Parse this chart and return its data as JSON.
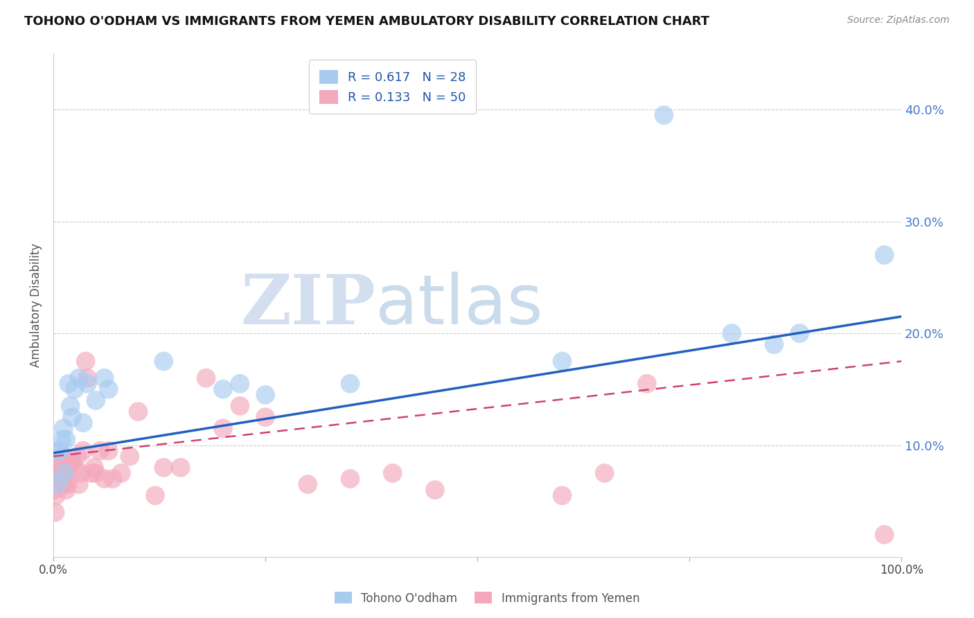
{
  "title": "TOHONO O'ODHAM VS IMMIGRANTS FROM YEMEN AMBULATORY DISABILITY CORRELATION CHART",
  "source": "Source: ZipAtlas.com",
  "ylabel": "Ambulatory Disability",
  "xlim": [
    0,
    1.0
  ],
  "ylim": [
    0,
    0.45
  ],
  "ytick_positions": [
    0.0,
    0.1,
    0.2,
    0.3,
    0.4
  ],
  "ytick_labels": [
    "",
    "10.0%",
    "20.0%",
    "30.0%",
    "40.0%"
  ],
  "xtick_positions": [
    0.0,
    0.25,
    0.5,
    0.75,
    1.0
  ],
  "xtick_labels": [
    "0.0%",
    "",
    "",
    "",
    "100.0%"
  ],
  "R_blue": 0.617,
  "N_blue": 28,
  "R_pink": 0.133,
  "N_pink": 50,
  "color_blue": "#A8CCF0",
  "color_pink": "#F4A8BC",
  "line_color_blue": "#2060C0",
  "line_color_pink": "#D04070",
  "watermark_zip": "ZIP",
  "watermark_atlas": "atlas",
  "blue_scatter_x": [
    0.003,
    0.005,
    0.007,
    0.01,
    0.012,
    0.013,
    0.015,
    0.018,
    0.02,
    0.022,
    0.025,
    0.03,
    0.035,
    0.04,
    0.05,
    0.06,
    0.065,
    0.13,
    0.2,
    0.22,
    0.25,
    0.35,
    0.6,
    0.72,
    0.8,
    0.85,
    0.88,
    0.98
  ],
  "blue_scatter_y": [
    0.095,
    0.065,
    0.095,
    0.105,
    0.115,
    0.075,
    0.105,
    0.155,
    0.135,
    0.125,
    0.15,
    0.16,
    0.12,
    0.155,
    0.14,
    0.16,
    0.15,
    0.175,
    0.15,
    0.155,
    0.145,
    0.155,
    0.175,
    0.395,
    0.2,
    0.19,
    0.2,
    0.27
  ],
  "pink_scatter_x": [
    0.001,
    0.002,
    0.003,
    0.004,
    0.005,
    0.006,
    0.007,
    0.008,
    0.009,
    0.01,
    0.011,
    0.012,
    0.013,
    0.015,
    0.017,
    0.018,
    0.02,
    0.022,
    0.025,
    0.028,
    0.03,
    0.032,
    0.035,
    0.038,
    0.04,
    0.045,
    0.048,
    0.05,
    0.055,
    0.06,
    0.065,
    0.07,
    0.08,
    0.09,
    0.1,
    0.12,
    0.13,
    0.15,
    0.18,
    0.2,
    0.22,
    0.25,
    0.3,
    0.35,
    0.4,
    0.45,
    0.6,
    0.65,
    0.7,
    0.98
  ],
  "pink_scatter_y": [
    0.06,
    0.04,
    0.055,
    0.07,
    0.075,
    0.085,
    0.08,
    0.065,
    0.075,
    0.08,
    0.09,
    0.07,
    0.065,
    0.06,
    0.065,
    0.08,
    0.085,
    0.085,
    0.08,
    0.09,
    0.065,
    0.075,
    0.095,
    0.175,
    0.16,
    0.075,
    0.08,
    0.075,
    0.095,
    0.07,
    0.095,
    0.07,
    0.075,
    0.09,
    0.13,
    0.055,
    0.08,
    0.08,
    0.16,
    0.115,
    0.135,
    0.125,
    0.065,
    0.07,
    0.075,
    0.06,
    0.055,
    0.075,
    0.155,
    0.02
  ],
  "blue_line_x0": 0.0,
  "blue_line_y0": 0.093,
  "blue_line_x1": 1.0,
  "blue_line_y1": 0.215,
  "pink_line_x0": 0.0,
  "pink_line_y0": 0.09,
  "pink_line_x1": 1.0,
  "pink_line_y1": 0.175
}
